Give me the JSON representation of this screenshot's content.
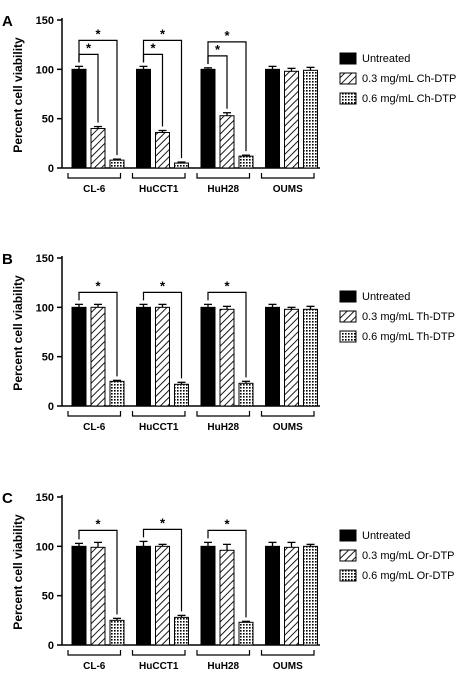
{
  "colors": {
    "untreated": "#000000",
    "hatch": "#000000",
    "background": "#ffffff"
  },
  "chart_data": [
    {
      "type": "bar",
      "panel_label": "A",
      "ylabel": "Percent cell viability",
      "ylim": [
        0,
        150
      ],
      "yticks": [
        "0",
        "50",
        "100",
        "150"
      ],
      "categories": [
        "CL-6",
        "HuCCT1",
        "HuH28",
        "OUMS"
      ],
      "series": [
        {
          "name": "Untreated",
          "pattern": "solid",
          "values": [
            100,
            100,
            100,
            100
          ],
          "errors": [
            3,
            3,
            1.5,
            3
          ]
        },
        {
          "name": "0.3 mg/mL Ch-DTP",
          "pattern": "hatch",
          "values": [
            40,
            36,
            53,
            98
          ],
          "errors": [
            2,
            2,
            3,
            3
          ]
        },
        {
          "name": "0.6 mg/mL Ch-DTP",
          "pattern": "dots",
          "values": [
            8,
            5,
            12,
            99
          ],
          "errors": [
            1,
            1,
            1,
            3
          ]
        }
      ],
      "significance": [
        {
          "group": 0,
          "from": 0,
          "to": 1,
          "mark": "*"
        },
        {
          "group": 0,
          "from": 0,
          "to": 2,
          "mark": "*"
        },
        {
          "group": 1,
          "from": 0,
          "to": 1,
          "mark": "*"
        },
        {
          "group": 1,
          "from": 0,
          "to": 2,
          "mark": "*"
        },
        {
          "group": 2,
          "from": 0,
          "to": 1,
          "mark": "*"
        },
        {
          "group": 2,
          "from": 0,
          "to": 2,
          "mark": "*"
        }
      ],
      "legend": "right",
      "grid": false
    },
    {
      "type": "bar",
      "panel_label": "B",
      "ylabel": "Percent cell viability",
      "ylim": [
        0,
        150
      ],
      "yticks": [
        "0",
        "50",
        "100",
        "150"
      ],
      "categories": [
        "CL-6",
        "HuCCT1",
        "HuH28",
        "OUMS"
      ],
      "series": [
        {
          "name": "Untreated",
          "pattern": "solid",
          "values": [
            100,
            100,
            100,
            100
          ],
          "errors": [
            3,
            3,
            3,
            3
          ]
        },
        {
          "name": "0.3 mg/mL Th-DTP",
          "pattern": "hatch",
          "values": [
            100,
            100,
            98,
            98
          ],
          "errors": [
            3,
            3,
            3,
            2
          ]
        },
        {
          "name": "0.6 mg/mL Th-DTP",
          "pattern": "dots",
          "values": [
            25,
            22,
            23,
            98
          ],
          "errors": [
            1,
            2,
            2,
            3
          ]
        }
      ],
      "significance": [
        {
          "group": 0,
          "from": 0,
          "to": 2,
          "mark": "*"
        },
        {
          "group": 1,
          "from": 0,
          "to": 2,
          "mark": "*"
        },
        {
          "group": 2,
          "from": 0,
          "to": 2,
          "mark": "*"
        }
      ],
      "legend": "right",
      "grid": false
    },
    {
      "type": "bar",
      "panel_label": "C",
      "ylabel": "Percent cell viability",
      "ylim": [
        0,
        150
      ],
      "yticks": [
        "0",
        "50",
        "100",
        "150"
      ],
      "categories": [
        "CL-6",
        "HuCCT1",
        "HuH28",
        "OUMS"
      ],
      "series": [
        {
          "name": "Untreated",
          "pattern": "solid",
          "values": [
            100,
            100,
            100,
            100
          ],
          "errors": [
            3,
            5,
            4,
            4
          ]
        },
        {
          "name": "0.3 mg/mL Or-DTP",
          "pattern": "hatch",
          "values": [
            99,
            100,
            96,
            99
          ],
          "errors": [
            5,
            2,
            6,
            5
          ]
        },
        {
          "name": "0.6 mg/mL Or-DTP",
          "pattern": "dots",
          "values": [
            25,
            28,
            23,
            100
          ],
          "errors": [
            2,
            2,
            1,
            2
          ]
        }
      ],
      "significance": [
        {
          "group": 0,
          "from": 0,
          "to": 2,
          "mark": "*"
        },
        {
          "group": 1,
          "from": 0,
          "to": 2,
          "mark": "*"
        },
        {
          "group": 2,
          "from": 0,
          "to": 2,
          "mark": "*"
        }
      ],
      "legend": "right",
      "grid": false
    }
  ]
}
